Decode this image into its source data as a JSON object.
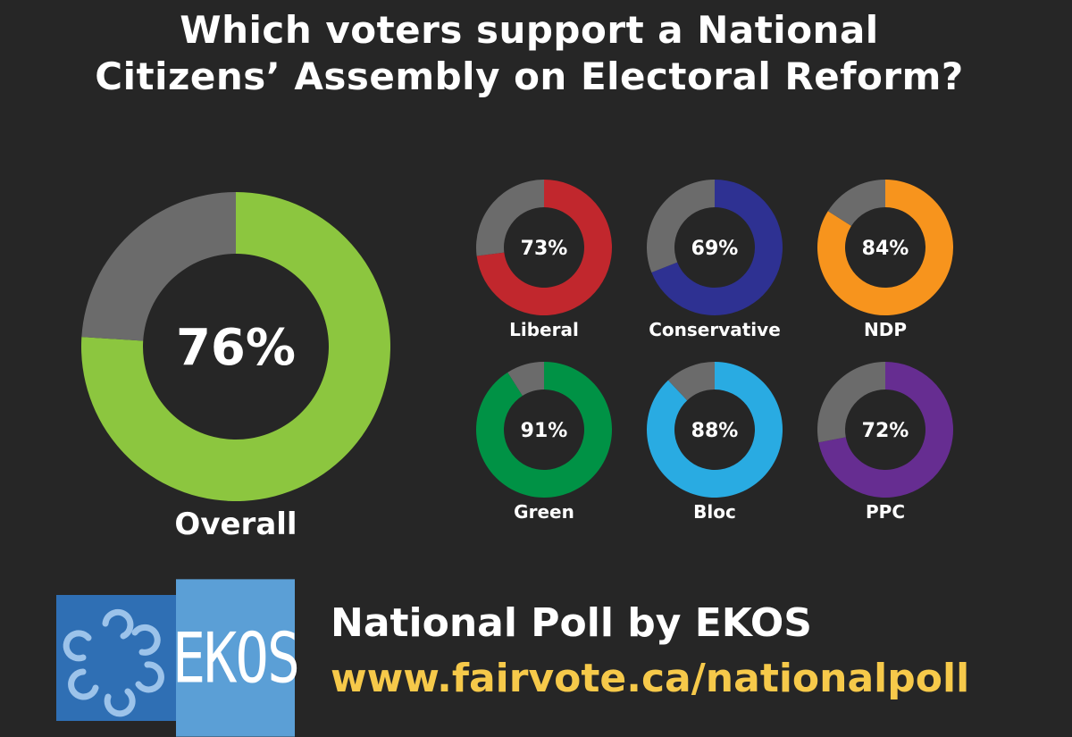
{
  "title": {
    "line1": "Which voters support a National",
    "line2": "Citizens’ Assembly on Electoral Reform?"
  },
  "chart_data": {
    "type": "pie",
    "subtype": "donut",
    "remainder_color": "#6b6b6b",
    "overall": {
      "name": "Overall",
      "value": 76,
      "label": "76%",
      "color": "#8cc63f"
    },
    "series": [
      {
        "name": "Liberal",
        "value": 73,
        "label": "73%",
        "color": "#c1272d"
      },
      {
        "name": "Conservative",
        "value": 69,
        "label": "69%",
        "color": "#2e3192"
      },
      {
        "name": "NDP",
        "value": 84,
        "label": "84%",
        "color": "#f7941d"
      },
      {
        "name": "Green",
        "value": 91,
        "label": "91%",
        "color": "#009245"
      },
      {
        "name": "Bloc",
        "value": 88,
        "label": "88%",
        "color": "#29abe2"
      },
      {
        "name": "PPC",
        "value": 72,
        "label": "72%",
        "color": "#662d91"
      }
    ]
  },
  "footer": {
    "logo_text": "EKOS",
    "title": "National Poll by EKOS",
    "url": "www.fairvote.ca/nationalpoll"
  }
}
